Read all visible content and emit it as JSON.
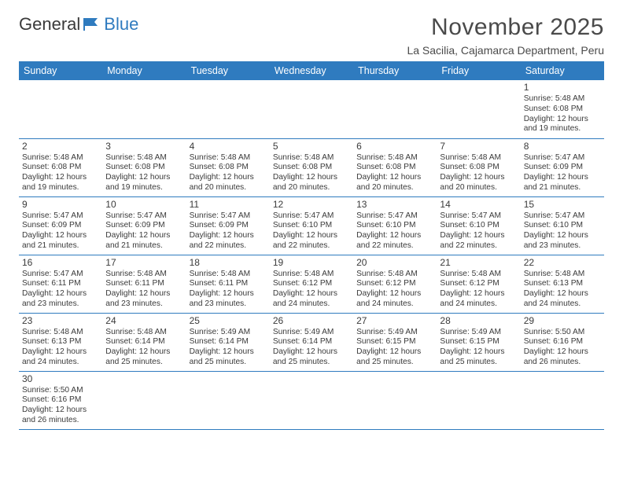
{
  "logo": {
    "text1": "General",
    "text2": "Blue"
  },
  "title": "November 2025",
  "location": "La Sacilia, Cajamarca Department, Peru",
  "header_bg": "#2f7bbf",
  "day_headers": [
    "Sunday",
    "Monday",
    "Tuesday",
    "Wednesday",
    "Thursday",
    "Friday",
    "Saturday"
  ],
  "weeks": [
    [
      null,
      null,
      null,
      null,
      null,
      null,
      {
        "n": "1",
        "sr": "5:48 AM",
        "ss": "6:08 PM",
        "dl": "12 hours and 19 minutes."
      }
    ],
    [
      {
        "n": "2",
        "sr": "5:48 AM",
        "ss": "6:08 PM",
        "dl": "12 hours and 19 minutes."
      },
      {
        "n": "3",
        "sr": "5:48 AM",
        "ss": "6:08 PM",
        "dl": "12 hours and 19 minutes."
      },
      {
        "n": "4",
        "sr": "5:48 AM",
        "ss": "6:08 PM",
        "dl": "12 hours and 20 minutes."
      },
      {
        "n": "5",
        "sr": "5:48 AM",
        "ss": "6:08 PM",
        "dl": "12 hours and 20 minutes."
      },
      {
        "n": "6",
        "sr": "5:48 AM",
        "ss": "6:08 PM",
        "dl": "12 hours and 20 minutes."
      },
      {
        "n": "7",
        "sr": "5:48 AM",
        "ss": "6:08 PM",
        "dl": "12 hours and 20 minutes."
      },
      {
        "n": "8",
        "sr": "5:47 AM",
        "ss": "6:09 PM",
        "dl": "12 hours and 21 minutes."
      }
    ],
    [
      {
        "n": "9",
        "sr": "5:47 AM",
        "ss": "6:09 PM",
        "dl": "12 hours and 21 minutes."
      },
      {
        "n": "10",
        "sr": "5:47 AM",
        "ss": "6:09 PM",
        "dl": "12 hours and 21 minutes."
      },
      {
        "n": "11",
        "sr": "5:47 AM",
        "ss": "6:09 PM",
        "dl": "12 hours and 22 minutes."
      },
      {
        "n": "12",
        "sr": "5:47 AM",
        "ss": "6:10 PM",
        "dl": "12 hours and 22 minutes."
      },
      {
        "n": "13",
        "sr": "5:47 AM",
        "ss": "6:10 PM",
        "dl": "12 hours and 22 minutes."
      },
      {
        "n": "14",
        "sr": "5:47 AM",
        "ss": "6:10 PM",
        "dl": "12 hours and 22 minutes."
      },
      {
        "n": "15",
        "sr": "5:47 AM",
        "ss": "6:10 PM",
        "dl": "12 hours and 23 minutes."
      }
    ],
    [
      {
        "n": "16",
        "sr": "5:47 AM",
        "ss": "6:11 PM",
        "dl": "12 hours and 23 minutes."
      },
      {
        "n": "17",
        "sr": "5:48 AM",
        "ss": "6:11 PM",
        "dl": "12 hours and 23 minutes."
      },
      {
        "n": "18",
        "sr": "5:48 AM",
        "ss": "6:11 PM",
        "dl": "12 hours and 23 minutes."
      },
      {
        "n": "19",
        "sr": "5:48 AM",
        "ss": "6:12 PM",
        "dl": "12 hours and 24 minutes."
      },
      {
        "n": "20",
        "sr": "5:48 AM",
        "ss": "6:12 PM",
        "dl": "12 hours and 24 minutes."
      },
      {
        "n": "21",
        "sr": "5:48 AM",
        "ss": "6:12 PM",
        "dl": "12 hours and 24 minutes."
      },
      {
        "n": "22",
        "sr": "5:48 AM",
        "ss": "6:13 PM",
        "dl": "12 hours and 24 minutes."
      }
    ],
    [
      {
        "n": "23",
        "sr": "5:48 AM",
        "ss": "6:13 PM",
        "dl": "12 hours and 24 minutes."
      },
      {
        "n": "24",
        "sr": "5:48 AM",
        "ss": "6:14 PM",
        "dl": "12 hours and 25 minutes."
      },
      {
        "n": "25",
        "sr": "5:49 AM",
        "ss": "6:14 PM",
        "dl": "12 hours and 25 minutes."
      },
      {
        "n": "26",
        "sr": "5:49 AM",
        "ss": "6:14 PM",
        "dl": "12 hours and 25 minutes."
      },
      {
        "n": "27",
        "sr": "5:49 AM",
        "ss": "6:15 PM",
        "dl": "12 hours and 25 minutes."
      },
      {
        "n": "28",
        "sr": "5:49 AM",
        "ss": "6:15 PM",
        "dl": "12 hours and 25 minutes."
      },
      {
        "n": "29",
        "sr": "5:50 AM",
        "ss": "6:16 PM",
        "dl": "12 hours and 26 minutes."
      }
    ],
    [
      {
        "n": "30",
        "sr": "5:50 AM",
        "ss": "6:16 PM",
        "dl": "12 hours and 26 minutes."
      },
      null,
      null,
      null,
      null,
      null,
      null
    ]
  ],
  "labels": {
    "sunrise": "Sunrise: ",
    "sunset": "Sunset: ",
    "daylight": "Daylight: "
  }
}
